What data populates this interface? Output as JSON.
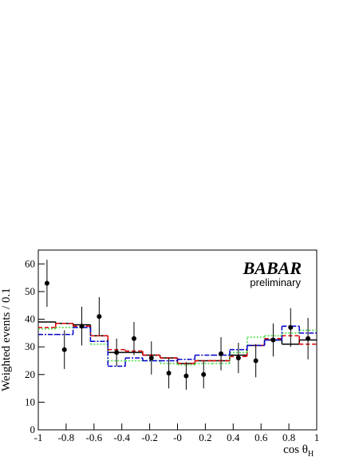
{
  "chart_data": {
    "type": "histogram",
    "ylabel": "Weighted events / 0.1",
    "xlabel": "cos θ",
    "xlabel_sub": "H",
    "annotations": [
      "BABAR",
      "preliminary"
    ],
    "xlim": [
      -1,
      1
    ],
    "ylim": [
      0,
      65
    ],
    "xticks": [
      -1,
      -0.8,
      -0.6,
      -0.4,
      -0.2,
      {
        "value": 0,
        "label": "-0"
      },
      0.2,
      0.4,
      0.6,
      0.8,
      1
    ],
    "yticks": [
      0,
      10,
      20,
      30,
      40,
      50,
      60
    ],
    "bins": [
      -1,
      -0.875,
      -0.75,
      -0.625,
      -0.5,
      -0.375,
      -0.25,
      -0.125,
      0,
      0.125,
      0.25,
      0.375,
      0.5,
      0.625,
      0.75,
      0.875,
      1
    ],
    "series": [
      {
        "color": "#000000",
        "dash": "",
        "values": [
          39,
          38.5,
          38,
          34,
          28,
          28,
          27,
          26,
          24,
          25,
          25,
          27,
          30.5,
          32.5,
          31,
          32.5
        ]
      },
      {
        "color": "#dd0000",
        "dash": "5,3",
        "values": [
          37,
          38.5,
          37.5,
          34,
          29,
          28.5,
          27,
          26,
          24,
          25,
          25,
          26.5,
          30.5,
          33,
          34,
          31
        ]
      },
      {
        "color": "#44dd44",
        "dash": "2,2",
        "values": [
          36.5,
          37,
          37,
          31,
          25,
          25,
          25,
          24,
          23.5,
          24,
          24,
          28,
          33.5,
          34,
          35,
          36
        ]
      },
      {
        "color": "#0000cc",
        "dash": "6,2,2,2",
        "values": [
          34.5,
          34.5,
          37,
          32,
          23,
          26,
          25,
          25,
          25.5,
          27,
          27,
          29,
          30.5,
          32.5,
          37.5,
          35
        ]
      }
    ],
    "points": {
      "color": "#000000",
      "x": [
        -0.9375,
        -0.8125,
        -0.6875,
        -0.5625,
        -0.4375,
        -0.3125,
        -0.1875,
        -0.0625,
        0.0625,
        0.1875,
        0.3125,
        0.4375,
        0.5625,
        0.6875,
        0.8125,
        0.9375
      ],
      "values": [
        53,
        29,
        37.5,
        41,
        28,
        33,
        26,
        20.5,
        19.5,
        20,
        27.5,
        26,
        25,
        32.5,
        37,
        33
      ],
      "errors": [
        8.5,
        7,
        7,
        7,
        5,
        6,
        6,
        5.5,
        5,
        5,
        6,
        5.5,
        6,
        6,
        7,
        7.5
      ]
    }
  }
}
